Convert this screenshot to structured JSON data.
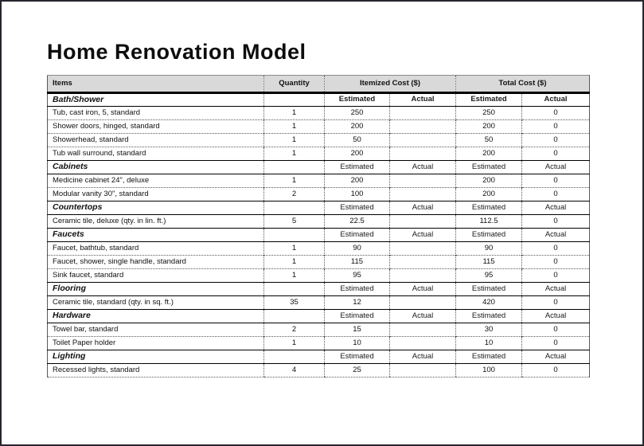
{
  "page": {
    "title": "Home Renovation Model"
  },
  "colors": {
    "header_fill": "#d9d9d9",
    "frame": "#26262e",
    "grid": "#595959"
  },
  "table": {
    "columns": {
      "items": "Items",
      "quantity": "Quantity",
      "itemized": "Itemized Cost ($)",
      "total": "Total Cost ($)"
    },
    "sub_headers": {
      "estimated": "Estimated",
      "actual": "Actual"
    },
    "sections": [
      {
        "name": "Bath/Shower",
        "rows": [
          {
            "item": "Tub, cast iron, 5, standard",
            "qty": "1",
            "item_est": "250",
            "item_act": "",
            "total_est": "250",
            "total_act": "0"
          },
          {
            "item": "Shower doors, hinged, standard",
            "qty": "1",
            "item_est": "200",
            "item_act": "",
            "total_est": "200",
            "total_act": "0"
          },
          {
            "item": "Showerhead, standard",
            "qty": "1",
            "item_est": "50",
            "item_act": "",
            "total_est": "50",
            "total_act": "0"
          },
          {
            "item": "Tub wall surround, standard",
            "qty": "1",
            "item_est": "200",
            "item_act": "",
            "total_est": "200",
            "total_act": "0"
          }
        ]
      },
      {
        "name": "Cabinets",
        "rows": [
          {
            "item": "Medicine cabinet 24\", deluxe",
            "qty": "1",
            "item_est": "200",
            "item_act": "",
            "total_est": "200",
            "total_act": "0"
          },
          {
            "item": "Modular vanity 30\", standard",
            "qty": "2",
            "item_est": "100",
            "item_act": "",
            "total_est": "200",
            "total_act": "0"
          }
        ]
      },
      {
        "name": "Countertops",
        "rows": [
          {
            "item": "Ceramic tile, deluxe (qty. in lin. ft.)",
            "qty": "5",
            "item_est": "22.5",
            "item_act": "",
            "total_est": "112.5",
            "total_act": "0"
          }
        ]
      },
      {
        "name": "Faucets",
        "rows": [
          {
            "item": "Faucet, bathtub, standard",
            "qty": "1",
            "item_est": "90",
            "item_act": "",
            "total_est": "90",
            "total_act": "0"
          },
          {
            "item": "Faucet, shower, single handle, standard",
            "qty": "1",
            "item_est": "115",
            "item_act": "",
            "total_est": "115",
            "total_act": "0"
          },
          {
            "item": "Sink faucet, standard",
            "qty": "1",
            "item_est": "95",
            "item_act": "",
            "total_est": "95",
            "total_act": "0"
          }
        ]
      },
      {
        "name": "Flooring",
        "rows": [
          {
            "item": "Ceramic tile, standard (qty. in sq. ft.)",
            "qty": "35",
            "item_est": "12",
            "item_act": "",
            "total_est": "420",
            "total_act": "0"
          }
        ]
      },
      {
        "name": "Hardware",
        "rows": [
          {
            "item": "Towel bar, standard",
            "qty": "2",
            "item_est": "15",
            "item_act": "",
            "total_est": "30",
            "total_act": "0"
          },
          {
            "item": "Toilet Paper holder",
            "qty": "1",
            "item_est": "10",
            "item_act": "",
            "total_est": "10",
            "total_act": "0"
          }
        ]
      },
      {
        "name": "Lighting",
        "rows": [
          {
            "item": "Recessed lights, standard",
            "qty": "4",
            "item_est": "25",
            "item_act": "",
            "total_est": "100",
            "total_act": "0"
          }
        ]
      }
    ]
  }
}
